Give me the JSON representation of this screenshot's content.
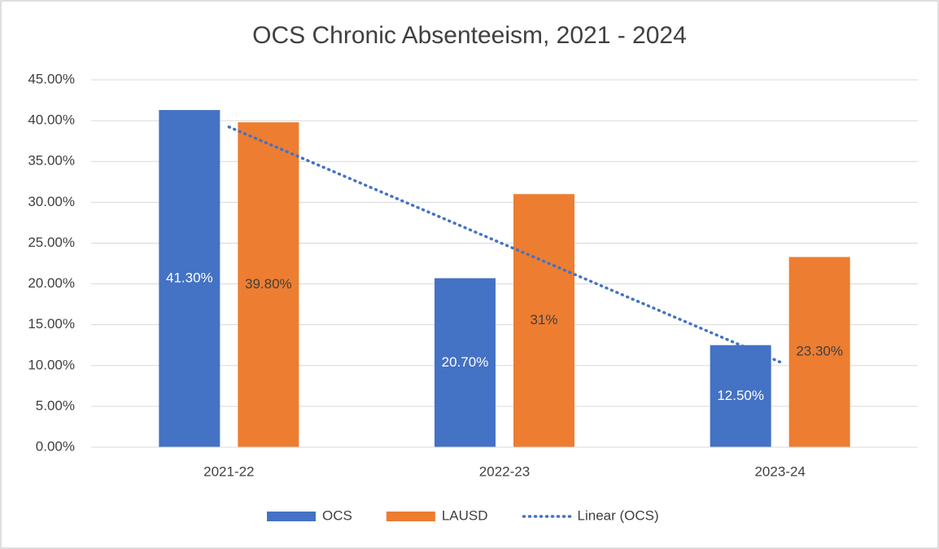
{
  "chart_data": {
    "type": "bar",
    "title": "OCS Chronic Absenteeism, 2021 - 2024",
    "categories": [
      "2021-22",
      "2022-23",
      "2023-24"
    ],
    "series": [
      {
        "name": "OCS",
        "color": "#4472c4",
        "values": [
          41.3,
          20.7,
          12.5
        ],
        "value_labels": [
          "41.30%",
          "20.70%",
          "12.50%"
        ],
        "label_color": "#ffffff"
      },
      {
        "name": "LAUSD",
        "color": "#ed7d31",
        "values": [
          39.8,
          31,
          23.3
        ],
        "value_labels": [
          "39.80%",
          "31%",
          "23.30%"
        ],
        "label_color": "#404040"
      },
      {
        "name": "Linear (OCS)",
        "color": "#4472c4",
        "type": "line",
        "style": "dotted",
        "values": [
          39.23,
          24.83,
          10.43
        ]
      }
    ],
    "ylim": [
      0,
      45
    ],
    "yticks": [
      {
        "value": 0,
        "label": "0.00%"
      },
      {
        "value": 5,
        "label": "5.00%"
      },
      {
        "value": 10,
        "label": "10.00%"
      },
      {
        "value": 15,
        "label": "15.00%"
      },
      {
        "value": 20,
        "label": "20.00%"
      },
      {
        "value": 25,
        "label": "25.00%"
      },
      {
        "value": 30,
        "label": "30.00%"
      },
      {
        "value": 35,
        "label": "35.00%"
      },
      {
        "value": 40,
        "label": "40.00%"
      },
      {
        "value": 45,
        "label": "45.00%"
      }
    ],
    "grid": true,
    "legend": "bottom"
  }
}
